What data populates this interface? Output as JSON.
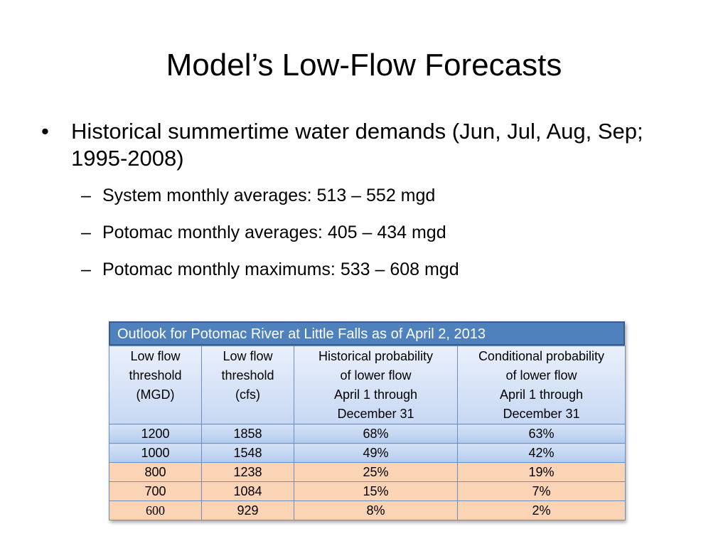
{
  "slide": {
    "title": "Model’s Low-Flow Forecasts",
    "bullets": [
      {
        "marker": "•",
        "text": "Historical summertime water demands (Jun, Jul, Aug, Sep; 1995-2008)",
        "sub_items": [
          {
            "marker": "–",
            "text": "System monthly averages:  513 – 552 mgd"
          },
          {
            "marker": "–",
            "text": "Potomac monthly averages:  405 – 434 mgd"
          },
          {
            "marker": "–",
            "text": "Potomac monthly maximums:  533 – 608 mgd"
          }
        ]
      }
    ]
  },
  "table": {
    "caption": "Outlook for Potomac River at Little Falls as of April 2, 2013",
    "headers": [
      [
        "Low flow",
        "threshold",
        "(MGD)"
      ],
      [
        "Low flow",
        "threshold",
        "(cfs)"
      ],
      [
        "Historical probability",
        "of lower flow",
        "April 1  through",
        "December 31"
      ],
      [
        "Conditional probability",
        "of lower flow",
        "April 1  through",
        "December 31"
      ]
    ],
    "rows": [
      [
        "1200",
        "1858",
        "68%",
        "63%"
      ],
      [
        "1000",
        "1548",
        "49%",
        "42%"
      ],
      [
        "800",
        "1238",
        "25%",
        "19%"
      ],
      [
        "700",
        "1084",
        "15%",
        "7%"
      ],
      [
        "600",
        "929",
        "8%",
        "2%"
      ]
    ],
    "row_colors": [
      "#c5d7f2",
      "#c5d7f2",
      "#fbd3b5",
      "#fbd3b5",
      "#fbd3b5"
    ],
    "caption_color": "#4f81bd"
  }
}
